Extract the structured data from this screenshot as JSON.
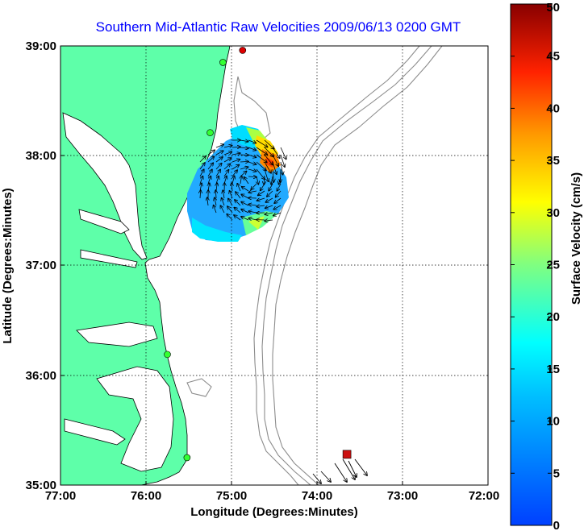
{
  "map": {
    "title": "Southern Mid-Atlantic Raw Velocities 2009/06/13 0200 GMT",
    "xlabel": "Longitude (Degrees:Minutes)",
    "ylabel": "Latitude (Degrees:Minutes)",
    "lon_ticks": [
      "77:00",
      "76:00",
      "75:00",
      "74:00",
      "73:00",
      "72:00"
    ],
    "lat_ticks": [
      "39:00",
      "38:00",
      "37:00",
      "36:00",
      "35:00"
    ],
    "lon_range": [
      -77,
      -72
    ],
    "lat_range": [
      35,
      39
    ],
    "land_color": "#5effa9",
    "bathymetry_color": "#8c8c8c"
  },
  "colorbar": {
    "label": "Surface Velocity (cm/s)",
    "ticks": [
      "50",
      "45",
      "40",
      "35",
      "30",
      "25",
      "20",
      "15",
      "10",
      "5",
      "0"
    ],
    "range": [
      0,
      50
    ],
    "colormap": "jet"
  },
  "stations": [
    {
      "lon": -74.87,
      "lat": 38.96,
      "color": "#dd0000"
    },
    {
      "lon": -75.1,
      "lat": 38.85,
      "color": "#33ff33"
    },
    {
      "lon": -75.25,
      "lat": 38.21,
      "color": "#33ff33"
    },
    {
      "lon": -75.75,
      "lat": 36.19,
      "color": "#33ff33"
    },
    {
      "lon": -75.52,
      "lat": 35.25,
      "color": "#33ff33"
    }
  ],
  "buoy": {
    "lon": -73.65,
    "lat": 35.28,
    "color": "#cc1111"
  }
}
